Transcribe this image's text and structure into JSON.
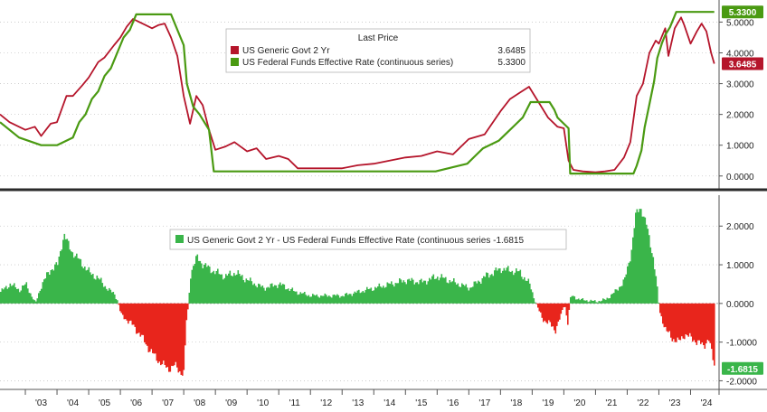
{
  "chart_data": [
    {
      "type": "line",
      "title": "",
      "legend": {
        "header": "Last Price",
        "placement": "top-center",
        "entries": [
          {
            "label": "US Generic Govt 2 Yr",
            "value": "3.6485",
            "color": "#b5152b"
          },
          {
            "label": "US Federal Funds Effective Rate (continuous series)",
            "value": "5.3300",
            "color": "#4a9a12"
          }
        ]
      },
      "y_ticks": [
        "0.0000",
        "1.0000",
        "2.0000",
        "3.0000",
        "4.0000",
        "5.0000"
      ],
      "ylim": [
        -0.3,
        5.6
      ],
      "xlim": [
        2002.2,
        2024.9
      ],
      "last_value_tags": [
        {
          "text": "5.3300",
          "y": 5.33,
          "color": "#4a9a12"
        },
        {
          "text": "3.6485",
          "y": 3.6485,
          "color": "#b5152b"
        }
      ],
      "series": [
        {
          "name": "US Generic Govt 2 Yr",
          "color": "#b5152b",
          "x": [
            2002.2,
            2002.5,
            2002.8,
            2003.0,
            2003.3,
            2003.5,
            2003.8,
            2004.0,
            2004.3,
            2004.5,
            2004.8,
            2005.0,
            2005.3,
            2005.5,
            2005.8,
            2006.0,
            2006.2,
            2006.4,
            2006.6,
            2006.8,
            2007.0,
            2007.2,
            2007.4,
            2007.6,
            2007.8,
            2008.0,
            2008.2,
            2008.4,
            2008.6,
            2008.8,
            2009.0,
            2009.3,
            2009.6,
            2010.0,
            2010.3,
            2010.6,
            2011.0,
            2011.3,
            2011.6,
            2012.0,
            2012.5,
            2013.0,
            2013.5,
            2014.0,
            2014.5,
            2015.0,
            2015.5,
            2016.0,
            2016.5,
            2017.0,
            2017.5,
            2018.0,
            2018.3,
            2018.6,
            2018.9,
            2019.2,
            2019.5,
            2019.8,
            2020.0,
            2020.15,
            2020.3,
            2020.6,
            2021.0,
            2021.3,
            2021.6,
            2021.9,
            2022.1,
            2022.3,
            2022.5,
            2022.7,
            2022.9,
            2023.0,
            2023.2,
            2023.3,
            2023.5,
            2023.7,
            2023.8,
            2024.0,
            2024.2,
            2024.35,
            2024.5,
            2024.65,
            2024.75
          ],
          "y": [
            2.0,
            1.75,
            1.6,
            1.5,
            1.6,
            1.3,
            1.7,
            1.75,
            2.6,
            2.6,
            2.95,
            3.2,
            3.7,
            3.85,
            4.25,
            4.5,
            4.85,
            5.1,
            5.0,
            4.9,
            4.8,
            4.9,
            4.95,
            4.5,
            3.9,
            2.6,
            1.7,
            2.6,
            2.3,
            1.5,
            0.85,
            0.95,
            1.1,
            0.8,
            0.9,
            0.55,
            0.65,
            0.55,
            0.25,
            0.25,
            0.25,
            0.25,
            0.35,
            0.4,
            0.5,
            0.6,
            0.65,
            0.8,
            0.7,
            1.2,
            1.35,
            2.1,
            2.5,
            2.7,
            2.9,
            2.4,
            1.9,
            1.6,
            1.55,
            0.5,
            0.2,
            0.15,
            0.12,
            0.15,
            0.2,
            0.6,
            1.1,
            2.6,
            3.0,
            4.0,
            4.4,
            4.3,
            4.8,
            3.9,
            4.8,
            5.15,
            4.9,
            4.3,
            4.7,
            4.95,
            4.7,
            4.0,
            3.6485
          ]
        },
        {
          "name": "US Federal Funds Effective Rate (continuous series)",
          "color": "#4a9a12",
          "x": [
            2002.2,
            2002.8,
            2003.5,
            2004.0,
            2004.5,
            2004.7,
            2004.9,
            2005.1,
            2005.3,
            2005.5,
            2005.7,
            2005.9,
            2006.1,
            2006.3,
            2006.5,
            2007.6,
            2007.8,
            2007.9,
            2008.0,
            2008.1,
            2008.3,
            2008.5,
            2008.8,
            2008.95,
            2015.95,
            2016.95,
            2017.2,
            2017.45,
            2017.95,
            2018.2,
            2018.45,
            2018.7,
            2018.95,
            2019.55,
            2019.7,
            2019.8,
            2020.15,
            2020.2,
            2022.2,
            2022.3,
            2022.45,
            2022.55,
            2022.7,
            2022.85,
            2022.95,
            2023.1,
            2023.2,
            2023.35,
            2023.55,
            2024.75
          ],
          "y": [
            1.75,
            1.25,
            1.0,
            1.0,
            1.25,
            1.75,
            2.0,
            2.5,
            2.75,
            3.25,
            3.5,
            4.0,
            4.5,
            4.75,
            5.25,
            5.25,
            4.75,
            4.5,
            4.25,
            3.0,
            2.25,
            2.0,
            1.5,
            0.15,
            0.15,
            0.4,
            0.65,
            0.9,
            1.15,
            1.4,
            1.65,
            1.9,
            2.4,
            2.4,
            2.15,
            1.9,
            1.55,
            0.08,
            0.08,
            0.33,
            0.83,
            1.58,
            2.33,
            3.08,
            3.83,
            4.33,
            4.58,
            4.83,
            5.33,
            5.33
          ]
        }
      ]
    },
    {
      "type": "area",
      "title": "",
      "legend": {
        "placement": "top-center",
        "entries": [
          {
            "label": "US Generic Govt 2 Yr - US Federal Funds Effective Rate (continuous series",
            "value": "-1.6815",
            "color": "#3ab54a"
          }
        ]
      },
      "y_ticks": [
        "-2.0000",
        "-1.0000",
        "0.0000",
        "1.0000",
        "2.0000"
      ],
      "ylim": [
        -2.2,
        2.8
      ],
      "xlim": [
        2002.2,
        2024.9
      ],
      "last_value_tag": {
        "text": "-1.6815",
        "y": -1.6815,
        "color": "#3ab54a"
      },
      "positive_color": "#3ab54a",
      "negative_color": "#e8251c",
      "series": [
        {
          "name": "US Generic Govt 2 Yr - US Federal Funds Effective Rate (continuous series",
          "x": [
            2002.2,
            2002.5,
            2002.8,
            2003.0,
            2003.3,
            2003.5,
            2003.8,
            2004.0,
            2004.2,
            2004.4,
            2004.6,
            2004.8,
            2005.0,
            2005.2,
            2005.4,
            2005.6,
            2005.8,
            2005.9,
            2006.0,
            2006.3,
            2006.6,
            2006.9,
            2007.2,
            2007.5,
            2007.7,
            2007.9,
            2008.0,
            2008.05,
            2008.1,
            2008.2,
            2008.4,
            2008.6,
            2008.8,
            2009.0,
            2009.3,
            2009.6,
            2010.0,
            2010.5,
            2011.0,
            2011.5,
            2012.0,
            2012.5,
            2013.0,
            2013.5,
            2014.0,
            2014.5,
            2015.0,
            2015.5,
            2016.0,
            2016.5,
            2017.0,
            2017.5,
            2018.0,
            2018.3,
            2018.6,
            2018.9,
            2019.1,
            2019.3,
            2019.5,
            2019.7,
            2019.9,
            2020.0,
            2020.1,
            2020.2,
            2020.5,
            2021.0,
            2021.3,
            2021.6,
            2021.9,
            2022.1,
            2022.25,
            2022.4,
            2022.6,
            2022.8,
            2022.9,
            2023.0,
            2023.2,
            2023.4,
            2023.6,
            2023.8,
            2024.0,
            2024.2,
            2024.4,
            2024.55,
            2024.65,
            2024.75
          ],
          "y": [
            0.3,
            0.5,
            0.35,
            0.5,
            0.0,
            0.5,
            0.9,
            1.0,
            1.8,
            1.4,
            1.2,
            1.0,
            0.8,
            0.7,
            0.55,
            0.35,
            0.25,
            0.05,
            -0.3,
            -0.5,
            -0.8,
            -1.2,
            -1.5,
            -1.7,
            -1.6,
            -1.8,
            -1.8,
            -0.5,
            -0.3,
            0.8,
            1.2,
            1.0,
            0.9,
            0.8,
            0.7,
            0.8,
            0.6,
            0.4,
            0.5,
            0.3,
            0.2,
            0.2,
            0.2,
            0.3,
            0.4,
            0.5,
            0.6,
            0.55,
            0.7,
            0.55,
            0.4,
            0.7,
            0.9,
            0.85,
            0.8,
            0.5,
            0.0,
            -0.4,
            -0.5,
            -0.7,
            -0.3,
            0.0,
            -0.5,
            0.2,
            0.1,
            0.05,
            0.1,
            0.3,
            0.6,
            1.3,
            2.3,
            2.5,
            2.0,
            1.2,
            0.6,
            -0.2,
            -0.7,
            -0.9,
            -1.0,
            -0.8,
            -0.9,
            -1.0,
            -1.1,
            -0.9,
            -1.3,
            -1.6815
          ]
        }
      ]
    }
  ],
  "x_axis": {
    "tick_labels": [
      "'03",
      "'04",
      "'05",
      "'06",
      "'07",
      "'08",
      "'09",
      "'10",
      "'11",
      "'12",
      "'13",
      "'14",
      "'15",
      "'16",
      "'17",
      "'18",
      "'19",
      "'20",
      "'21",
      "'22",
      "'23",
      "'24"
    ]
  }
}
